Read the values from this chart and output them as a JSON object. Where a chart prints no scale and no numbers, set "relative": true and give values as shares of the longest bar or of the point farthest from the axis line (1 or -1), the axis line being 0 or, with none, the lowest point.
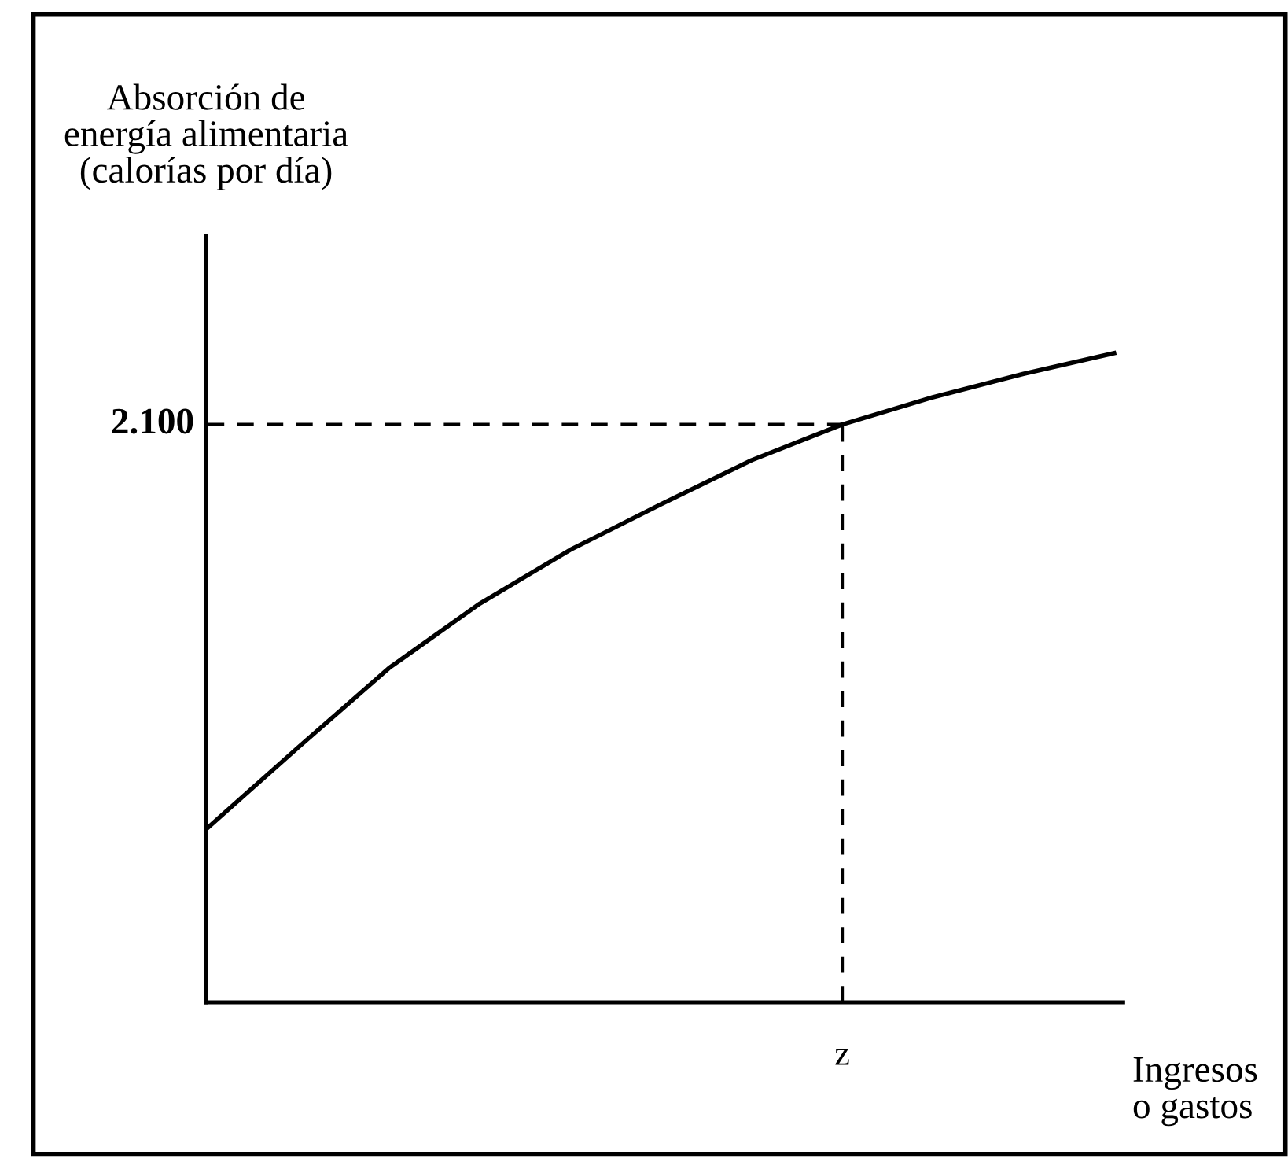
{
  "chart_data": {
    "type": "line",
    "relative": true,
    "ylabel": "Absorción de\nenergía alimentaria\n(calorías por día)",
    "xlabel": "Ingresos\no gastos",
    "categories": [
      null,
      null,
      null,
      null,
      null,
      null,
      null,
      null,
      null,
      null,
      null
    ],
    "annotations": [
      "2.100",
      "z"
    ],
    "series": [
      {
        "color": "#000000",
        "values": [
          0.269,
          0.393,
          0.515,
          0.614,
          0.697,
          0.767,
          0.835,
          0.89,
          0.932,
          0.968,
          1
        ]
      }
    ],
    "ref_lines": [
      {
        "axis": "y",
        "value": 0.89,
        "line_style": "dashed",
        "color": "#000000"
      }
    ],
    "grid": false,
    "marker": "none",
    "line_style": "solid"
  }
}
